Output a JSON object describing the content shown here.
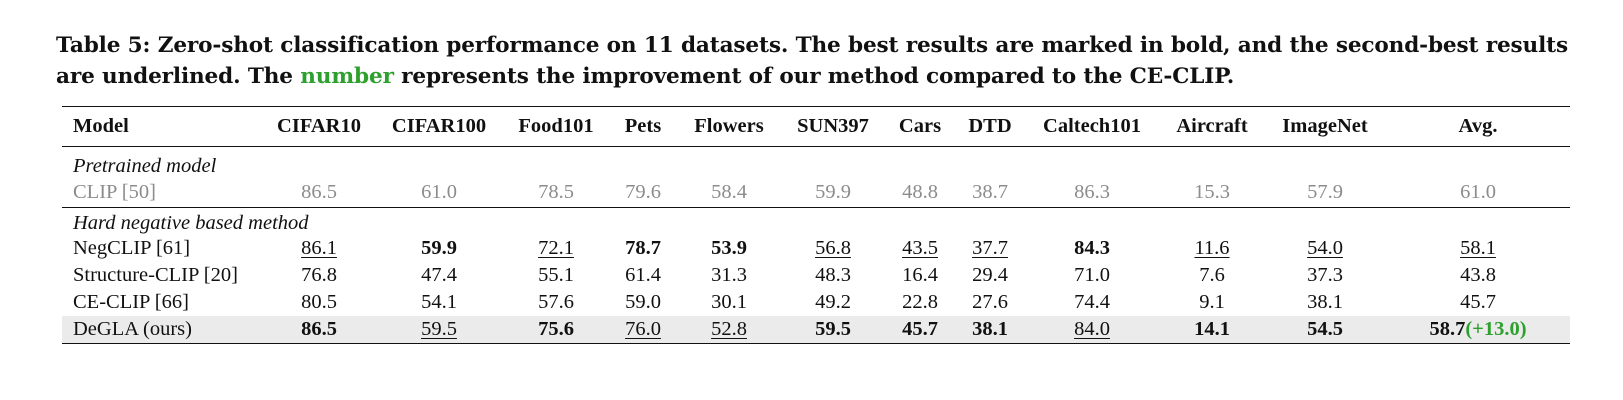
{
  "caption": {
    "part1": "Table 5: Zero-shot classification performance on 11 datasets. The best results are marked in bold, and the second-best results are underlined. The ",
    "highlight": "number",
    "part2": " represents the improvement of our method compared to the CE-CLIP."
  },
  "table": {
    "headers": [
      "Model",
      "CIFAR10",
      "CIFAR100",
      "Food101",
      "Pets",
      "Flowers",
      "SUN397",
      "Cars",
      "DTD",
      "Caltech101",
      "Aircraft",
      "ImageNet",
      "Avg."
    ],
    "groups": [
      {
        "label": "Pretrained model",
        "rows": [
          {
            "model": "CLIP [50]",
            "values": [
              "86.5",
              "61.0",
              "78.5",
              "79.6",
              "58.4",
              "59.9",
              "48.8",
              "38.7",
              "86.3",
              "15.3",
              "57.9",
              "61.0"
            ]
          }
        ]
      },
      {
        "label": "Hard negative based method",
        "rows": [
          {
            "model": "NegCLIP [61]",
            "values": [
              "86.1",
              "59.9",
              "72.1",
              "78.7",
              "53.9",
              "56.8",
              "43.5",
              "37.7",
              "84.3",
              "11.6",
              "54.0",
              "58.1"
            ]
          },
          {
            "model": "Structure-CLIP [20]",
            "values": [
              "76.8",
              "47.4",
              "55.1",
              "61.4",
              "31.3",
              "48.3",
              "16.4",
              "29.4",
              "71.0",
              "7.6",
              "37.3",
              "43.8"
            ]
          },
          {
            "model": "CE-CLIP [66]",
            "values": [
              "80.5",
              "54.1",
              "57.6",
              "59.0",
              "30.1",
              "49.2",
              "22.8",
              "27.6",
              "74.4",
              "9.1",
              "38.1",
              "45.7"
            ]
          },
          {
            "model": "DeGLA (ours)",
            "values": [
              "86.5",
              "59.5",
              "75.6",
              "76.0",
              "52.8",
              "59.5",
              "45.7",
              "38.1",
              "84.0",
              "14.1",
              "54.5",
              "58.7"
            ],
            "avg_gain": "(+13.0)"
          }
        ]
      }
    ]
  }
}
